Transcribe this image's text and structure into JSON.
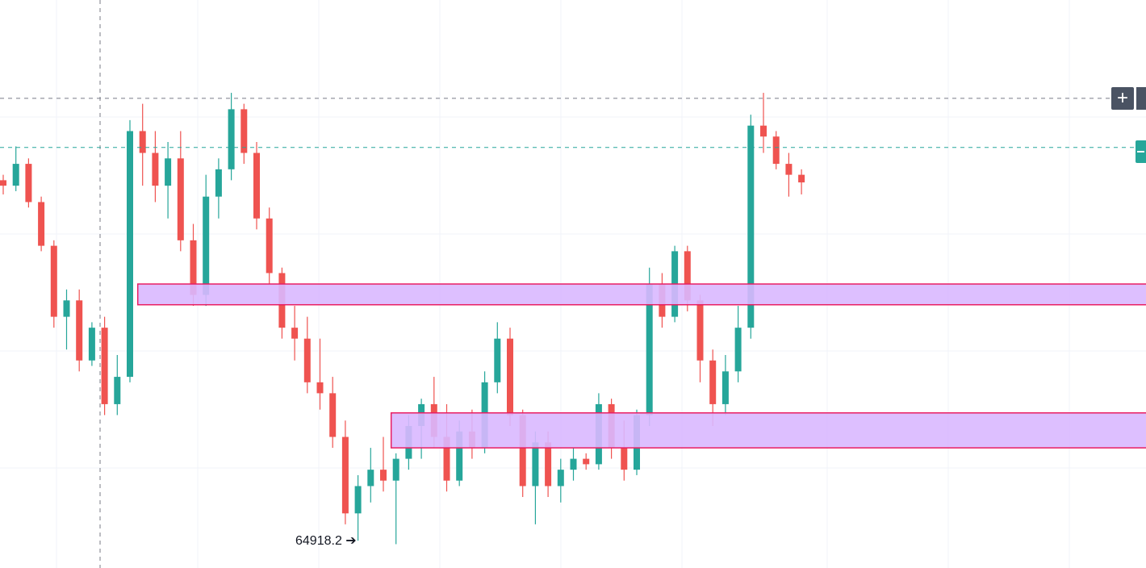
{
  "chart_data": {
    "type": "candlestick",
    "title": "",
    "xlabel": "",
    "ylabel": "",
    "grid": true,
    "ylim": [
      64700,
      69900
    ],
    "low_marker": {
      "value": 64918.2,
      "label": "64918.2",
      "arrow": "➔"
    },
    "crosshair_price": 69000,
    "current_price": 68550,
    "zones": [
      {
        "name": "",
        "y_top": 67300,
        "y_bottom": 67110,
        "start_index": 11,
        "end_index": 120,
        "fill": "#d9b8ff",
        "stroke": "#e91e63"
      },
      {
        "name": "",
        "y_top": 66120,
        "y_bottom": 65800,
        "start_index": 31,
        "end_index": 112,
        "fill": "#d9b8ff",
        "stroke": "#e91e63"
      }
    ],
    "candles": [
      [
        68250,
        68300,
        68120,
        68200
      ],
      [
        68200,
        68560,
        68150,
        68400
      ],
      [
        68400,
        68450,
        68000,
        68050
      ],
      [
        68050,
        68100,
        67600,
        67650
      ],
      [
        67650,
        67700,
        66900,
        67000
      ],
      [
        67000,
        67250,
        66700,
        67150
      ],
      [
        67150,
        67250,
        66500,
        66600
      ],
      [
        66600,
        66950,
        66550,
        66900
      ],
      [
        66900,
        67000,
        66100,
        66200
      ],
      [
        66200,
        66650,
        66100,
        66450
      ],
      [
        66450,
        68800,
        66400,
        68700
      ],
      [
        68700,
        68950,
        68200,
        68500
      ],
      [
        68500,
        68700,
        68050,
        68200
      ],
      [
        68200,
        68600,
        67900,
        68450
      ],
      [
        68450,
        68700,
        67600,
        67700
      ],
      [
        67700,
        67850,
        67100,
        67200
      ],
      [
        67200,
        68300,
        67100,
        68100
      ],
      [
        68100,
        68450,
        67900,
        68350
      ],
      [
        68350,
        69050,
        68250,
        68900
      ],
      [
        68900,
        68950,
        68400,
        68500
      ],
      [
        68500,
        68600,
        67800,
        67900
      ],
      [
        67900,
        68000,
        67300,
        67400
      ],
      [
        67400,
        67450,
        66800,
        66900
      ],
      [
        66900,
        67100,
        66600,
        66800
      ],
      [
        66800,
        67000,
        66300,
        66400
      ],
      [
        66400,
        66800,
        66150,
        66300
      ],
      [
        66300,
        66450,
        65800,
        65900
      ],
      [
        65900,
        66050,
        65100,
        65200
      ],
      [
        65200,
        65550,
        64950,
        65450
      ],
      [
        65450,
        65800,
        65300,
        65600
      ],
      [
        65600,
        65900,
        65400,
        65500
      ],
      [
        65500,
        65750,
        64918.2,
        65700
      ],
      [
        65700,
        66100,
        65600,
        66000
      ],
      [
        66000,
        66250,
        65700,
        66200
      ],
      [
        66200,
        66450,
        65800,
        65900
      ],
      [
        65900,
        66200,
        65400,
        65500
      ],
      [
        65500,
        66050,
        65450,
        65950
      ],
      [
        65950,
        66150,
        65700,
        65800
      ],
      [
        65800,
        66500,
        65750,
        66400
      ],
      [
        66400,
        66950,
        66300,
        66800
      ],
      [
        66800,
        66900,
        66000,
        66100
      ],
      [
        66100,
        66150,
        65350,
        65450
      ],
      [
        65450,
        65950,
        65100,
        65850
      ],
      [
        65850,
        65950,
        65350,
        65450
      ],
      [
        65450,
        65700,
        65300,
        65600
      ],
      [
        65600,
        65800,
        65500,
        65700
      ],
      [
        65700,
        65750,
        65600,
        65650
      ],
      [
        65650,
        66300,
        65600,
        66200
      ],
      [
        66200,
        66250,
        65700,
        65800
      ],
      [
        65800,
        66050,
        65500,
        65600
      ],
      [
        65600,
        66150,
        65550,
        66100
      ],
      [
        66100,
        67450,
        66000,
        67300
      ],
      [
        67300,
        67400,
        66900,
        67000
      ],
      [
        67000,
        67650,
        66950,
        67600
      ],
      [
        67600,
        67650,
        67050,
        67150
      ],
      [
        67150,
        67200,
        66400,
        66600
      ],
      [
        66600,
        66700,
        66000,
        66200
      ],
      [
        66200,
        66650,
        66100,
        66500
      ],
      [
        66500,
        67100,
        66400,
        66900
      ],
      [
        66900,
        68850,
        66800,
        68750
      ],
      [
        68750,
        69050,
        68500,
        68650
      ],
      [
        68650,
        68700,
        68350,
        68400
      ],
      [
        68400,
        68500,
        68100,
        68300
      ],
      [
        68300,
        68350,
        68120,
        68230
      ]
    ]
  }
}
